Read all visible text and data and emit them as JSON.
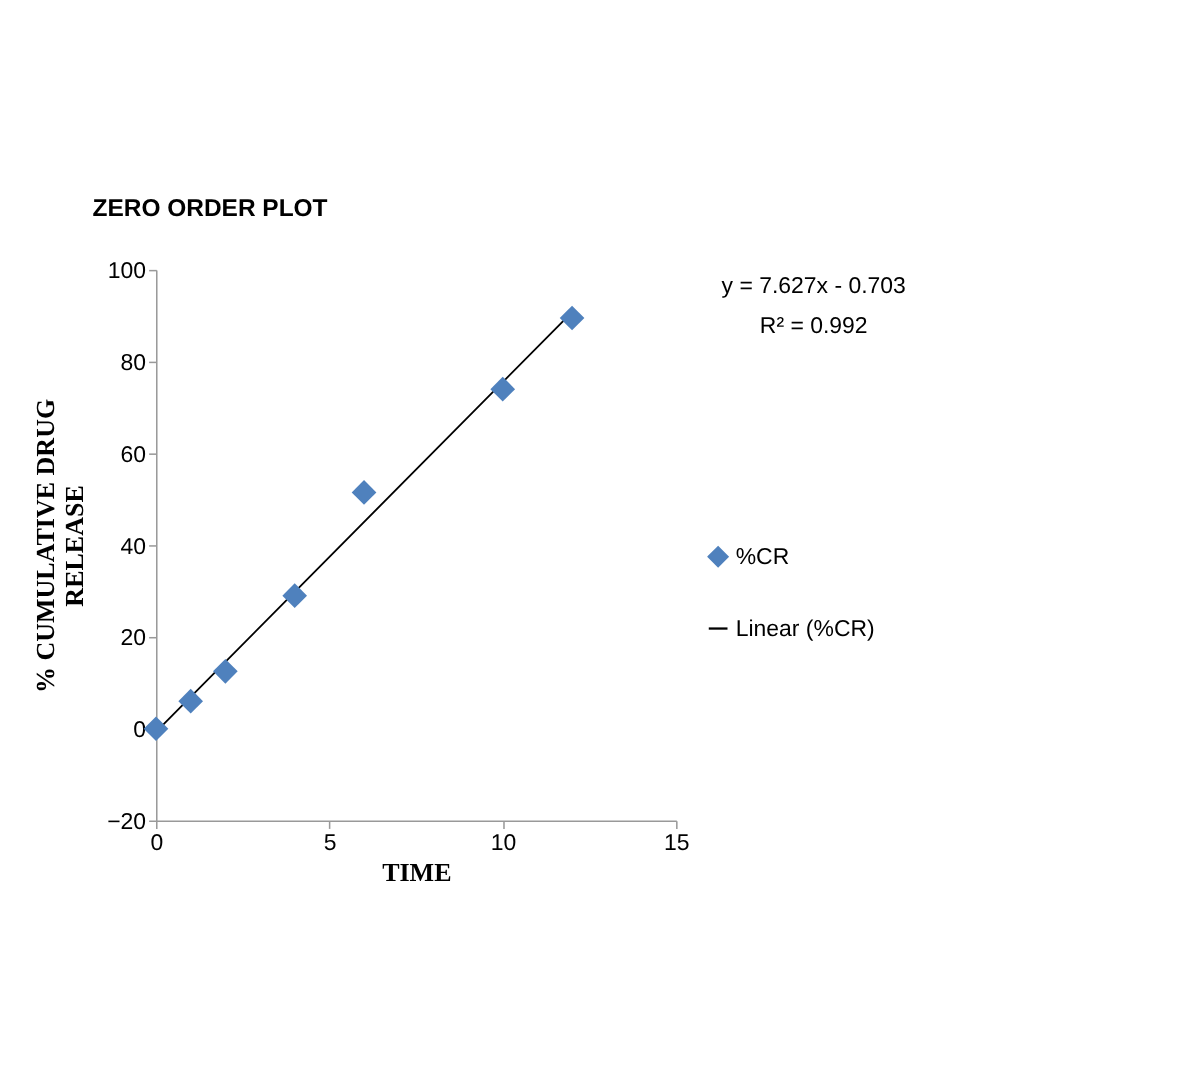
{
  "chart_data": {
    "type": "scatter",
    "title": "ZERO ORDER PLOT",
    "xlabel": "TIME",
    "ylabel": "% CUMULATIVE DRUG RELEASE",
    "series": [
      {
        "name": "%CR",
        "marker": "diamond",
        "color": "#4f81bd",
        "x": [
          0,
          1,
          2,
          4,
          6,
          10,
          12
        ],
        "values": [
          0,
          6,
          12.5,
          29,
          51.5,
          74,
          89.5
        ]
      },
      {
        "name": "Linear (%CR)",
        "type": "line",
        "marker": "none",
        "color": "#000000",
        "x": [
          0,
          12
        ],
        "values": [
          -0.7,
          90.8
        ]
      }
    ],
    "xlim": [
      0,
      15
    ],
    "xticks": [
      0,
      5,
      10,
      15
    ],
    "ylim": [
      -20,
      100
    ],
    "yticks": [
      -20,
      0,
      20,
      40,
      60,
      80,
      100
    ],
    "grid": false,
    "legend": "right",
    "annotations": [
      "y = 7.627x - 0.703",
      "R² = 0.992"
    ]
  }
}
